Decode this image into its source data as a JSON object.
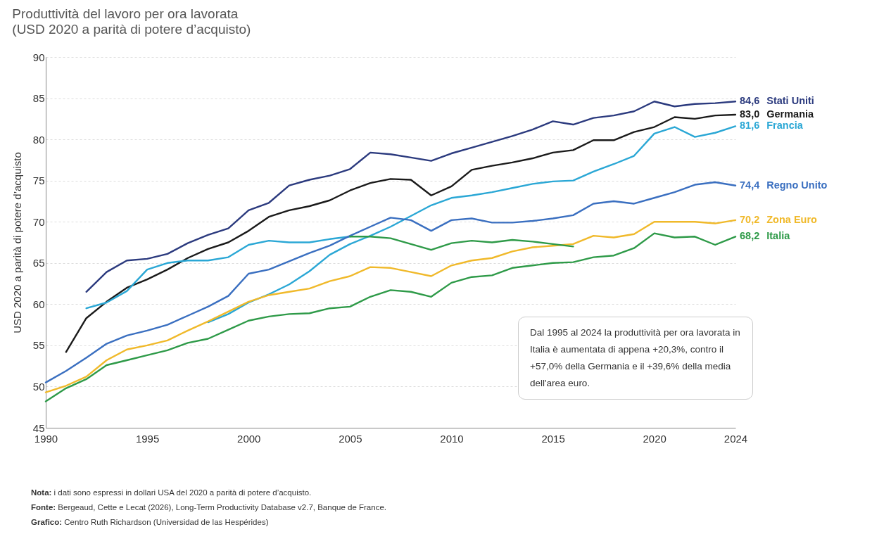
{
  "chart_data": {
    "type": "line",
    "title": "Produttività del lavoro per ora lavorata",
    "subtitle": "(USD 2020 a parità di potere d’acquisto)",
    "ylabel": "USD 2020 a parità di potere d’acquisto",
    "x": [
      1990,
      1991,
      1992,
      1993,
      1994,
      1995,
      1996,
      1997,
      1998,
      1999,
      2000,
      2001,
      2002,
      2003,
      2004,
      2005,
      2006,
      2007,
      2008,
      2009,
      2010,
      2011,
      2012,
      2013,
      2014,
      2015,
      2016,
      2017,
      2018,
      2019,
      2020,
      2021,
      2022,
      2023,
      2024
    ],
    "xlim": [
      1990,
      2024
    ],
    "xticks": [
      1990,
      1995,
      2000,
      2005,
      2010,
      2015,
      2020,
      2024
    ],
    "ylim": [
      45,
      90
    ],
    "yticks": [
      45,
      50,
      55,
      60,
      65,
      70,
      75,
      80,
      85,
      90
    ],
    "grid": "y",
    "series": [
      {
        "name": "Stati Uniti",
        "color": "#2b3a7e",
        "x": [
          1992,
          1993,
          1994,
          1995,
          1996,
          1997,
          1998,
          1999,
          2000,
          2001,
          2002,
          2003,
          2004,
          2005,
          2006,
          2007,
          2008,
          2009,
          2010,
          2011,
          2012,
          2013,
          2014,
          2015,
          2016,
          2017,
          2018,
          2019,
          2020,
          2021,
          2022,
          2023,
          2024
        ],
        "values": [
          61.5,
          63.9,
          65.3,
          65.5,
          66.1,
          67.4,
          68.4,
          69.2,
          71.4,
          72.3,
          74.4,
          75.1,
          75.6,
          76.4,
          78.4,
          78.2,
          77.8,
          77.4,
          78.3,
          79.0,
          79.7,
          80.4,
          81.2,
          82.2,
          81.8,
          82.6,
          82.9,
          83.4,
          84.6,
          84.0,
          84.3,
          84.4,
          84.6
        ],
        "value_labels": [
          null,
          null,
          null,
          null,
          null,
          null,
          null,
          null,
          null,
          null,
          null,
          null,
          null,
          null,
          null,
          null,
          null,
          null,
          null,
          null,
          null,
          null,
          null,
          null,
          null,
          null,
          null,
          null,
          null,
          null,
          null,
          null,
          "84,6"
        ]
      },
      {
        "name": "Germania",
        "color": "#1a1a1a",
        "x": [
          1991,
          1992,
          1993,
          1994,
          1995,
          1996,
          1997,
          1998,
          1999,
          2000,
          2001,
          2002,
          2003,
          2004,
          2005,
          2006,
          2007,
          2008,
          2009,
          2010,
          2011,
          2012,
          2013,
          2014,
          2015,
          2016,
          2017,
          2018,
          2019,
          2020,
          2021,
          2022,
          2023,
          2024
        ],
        "values": [
          54.2,
          58.3,
          60.3,
          62.0,
          63.0,
          64.2,
          65.6,
          66.7,
          67.5,
          68.9,
          70.6,
          71.4,
          71.9,
          72.6,
          73.8,
          74.7,
          75.2,
          75.1,
          73.2,
          74.3,
          76.3,
          76.8,
          77.2,
          77.7,
          78.4,
          78.7,
          79.9,
          79.9,
          80.9,
          81.5,
          82.7,
          82.5,
          82.9,
          83.0
        ],
        "value_labels": [
          null,
          null,
          null,
          null,
          null,
          null,
          null,
          null,
          null,
          null,
          null,
          null,
          null,
          null,
          null,
          null,
          null,
          null,
          null,
          null,
          null,
          null,
          null,
          null,
          null,
          null,
          null,
          null,
          null,
          null,
          null,
          null,
          null,
          "83,0"
        ]
      },
      {
        "name": "Francia",
        "color": "#2aa7d5",
        "x": [
          1998,
          1999,
          2000,
          2001,
          2002,
          2003,
          2004,
          2005,
          2006,
          2007,
          2008,
          2009,
          2010,
          2011,
          2012,
          2013,
          2014,
          2015,
          2016,
          2017,
          2018,
          2019,
          2020,
          2021,
          2022,
          2023,
          2024
        ],
        "values": [
          57.8,
          58.8,
          60.2,
          61.2,
          62.4,
          64.0,
          66.0,
          67.3,
          68.3,
          69.4,
          70.7,
          72.0,
          72.9,
          73.2,
          73.6,
          74.1,
          74.6,
          74.9,
          75.0,
          76.1,
          77.0,
          78.0,
          80.7,
          81.5,
          80.3,
          80.8,
          81.6
        ],
        "value_labels": [
          null,
          null,
          null,
          null,
          null,
          null,
          null,
          null,
          null,
          null,
          null,
          null,
          null,
          null,
          null,
          null,
          null,
          null,
          null,
          null,
          null,
          null,
          null,
          null,
          null,
          null,
          "81,6"
        ]
      },
      {
        "color": "#2aa7d5",
        "x": [
          1992,
          1993,
          1994,
          1995,
          1996,
          1997,
          1998,
          1999,
          2000,
          2001,
          2002,
          2003,
          2004,
          2005
        ],
        "values": [
          59.5,
          60.2,
          61.6,
          64.2,
          65.0,
          65.3,
          65.3,
          65.7,
          67.2,
          67.7,
          67.5,
          67.5,
          67.9,
          68.2
        ]
      },
      {
        "name": "Regno Unito",
        "color": "#3a6fc0",
        "values": [
          50.5,
          51.9,
          53.5,
          55.2,
          56.2,
          56.8,
          57.5,
          58.6,
          59.7,
          61.0,
          63.7,
          64.2,
          65.2,
          66.2,
          67.1,
          68.3,
          69.4,
          70.5,
          70.2,
          68.9,
          70.2,
          70.4,
          69.9,
          69.9,
          70.1,
          70.4,
          70.8,
          72.2,
          72.5,
          72.2,
          72.9,
          73.6,
          74.5,
          74.8,
          74.4
        ],
        "value_labels": [
          null,
          null,
          null,
          null,
          null,
          null,
          null,
          null,
          null,
          null,
          null,
          null,
          null,
          null,
          null,
          null,
          null,
          null,
          null,
          null,
          null,
          null,
          null,
          null,
          null,
          null,
          null,
          null,
          null,
          null,
          null,
          null,
          null,
          null,
          "74,4"
        ]
      },
      {
        "name": "Zona Euro",
        "color": "#f0b92a",
        "values": [
          49.3,
          50.1,
          51.2,
          53.2,
          54.5,
          55.0,
          55.6,
          56.8,
          57.9,
          59.1,
          60.3,
          61.1,
          61.5,
          61.9,
          62.8,
          63.4,
          64.5,
          64.4,
          63.9,
          63.4,
          64.7,
          65.3,
          65.6,
          66.4,
          66.9,
          67.1,
          67.3,
          68.3,
          68.1,
          68.5,
          70.0,
          70.0,
          70.0,
          69.8,
          70.2
        ],
        "value_labels": [
          null,
          null,
          null,
          null,
          null,
          null,
          null,
          null,
          null,
          null,
          null,
          null,
          null,
          null,
          null,
          null,
          null,
          null,
          null,
          null,
          null,
          null,
          null,
          null,
          null,
          null,
          null,
          null,
          null,
          null,
          null,
          null,
          null,
          null,
          "70,2"
        ]
      },
      {
        "color": "#2e9a48",
        "x": [
          2005,
          2006,
          2007,
          2008,
          2009,
          2010,
          2011,
          2012,
          2013,
          2014,
          2015,
          2016
        ],
        "values": [
          68.2,
          68.2,
          68.0,
          67.3,
          66.6,
          67.4,
          67.7,
          67.5,
          67.8,
          67.6,
          67.3,
          67.0
        ]
      },
      {
        "name": "Italia",
        "color": "#2e9a48",
        "values": [
          48.2,
          49.8,
          50.9,
          52.6,
          53.2,
          53.8,
          54.4,
          55.3,
          55.8,
          56.9,
          58.0,
          58.5,
          58.8,
          58.9,
          59.5,
          59.7,
          60.9,
          61.7,
          61.5,
          60.9,
          62.6,
          63.3,
          63.5,
          64.4,
          64.7,
          65.0,
          65.1,
          65.7,
          65.9,
          66.8,
          68.6,
          68.1,
          68.2,
          67.2,
          68.2
        ],
        "value_labels": [
          null,
          null,
          null,
          null,
          null,
          null,
          null,
          null,
          null,
          null,
          null,
          null,
          null,
          null,
          null,
          null,
          null,
          null,
          null,
          null,
          null,
          null,
          null,
          null,
          null,
          null,
          null,
          null,
          null,
          null,
          null,
          null,
          null,
          null,
          "68,2"
        ]
      }
    ],
    "annotations": [
      "Dal 1995 al 2024 la produttività per ora lavorata in Italia è aumentata di appena +20,3%, contro il +57,0% della Germania e il +39,6% della media dell'area euro.",
      "Nota: i dati sono espressi in dollari USA del 2020 a parità di potere d’acquisto.",
      "Fonte: Bergeaud, Cette e Lecat (2026), Long-Term Productivity Database v2.7, Banque de France.",
      "Grafico: Centro Ruth Richardson (Universidad de las Hespérides)"
    ]
  }
}
